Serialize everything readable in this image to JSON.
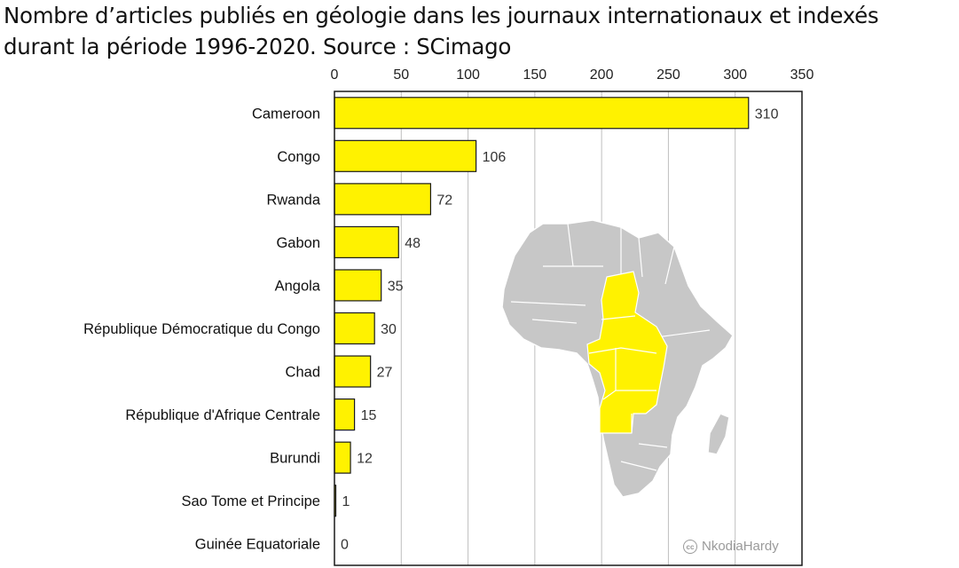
{
  "title_lines": [
    "Nombre d’articles publiés en géologie  dans les journaux internationaux et indexés",
    "durant la  période 1996-2020. Source : SCimago"
  ],
  "watermark": {
    "icon": "cc-icon",
    "glyph": "cc",
    "text": "NkodiaHardy"
  },
  "colors": {
    "bar": "#FFF200",
    "bar_stroke": "#1a1a1a",
    "grid": "#bfbfbf",
    "map_land": "#c7c7c7",
    "map_highlight": "#FFF200"
  },
  "chart_data": {
    "type": "bar",
    "orientation": "horizontal",
    "title": "Nombre d’articles publiés en géologie  dans les journaux internationaux et indexés durant la  période 1996-2020. Source : SCimago",
    "xlabel": "",
    "ylabel": "",
    "xlim": [
      0,
      350
    ],
    "xticks": [
      0,
      50,
      100,
      150,
      200,
      250,
      300,
      350
    ],
    "x_axis_position": "top",
    "grid": true,
    "legend": "none",
    "categories": [
      "Cameroon",
      "Congo",
      "Rwanda",
      "Gabon",
      "Angola",
      "République Démocratique du Congo",
      "Chad",
      "République d'Afrique Centrale",
      "Burundi",
      "Sao Tome et Principe",
      "Guinée Equatoriale"
    ],
    "values": [
      310,
      106,
      72,
      48,
      35,
      30,
      27,
      15,
      12,
      1,
      0
    ]
  }
}
